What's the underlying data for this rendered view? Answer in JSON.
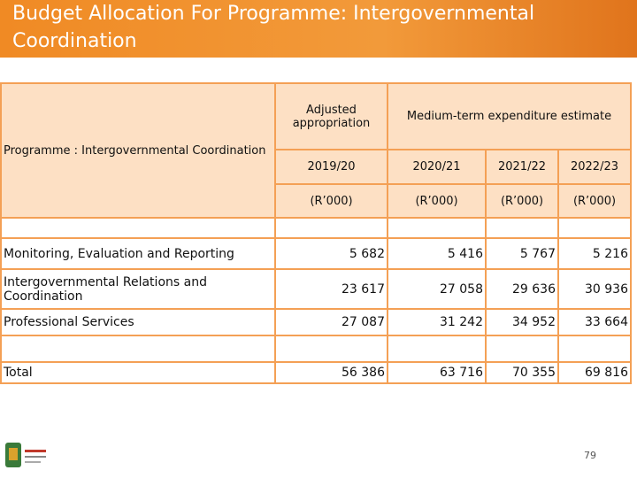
{
  "header": {
    "title": "Budget Allocation For Programme: Intergovernmental Coordination"
  },
  "table": {
    "row_header": "Programme : Intergovernmental Coordination",
    "group_headers": [
      "Adjusted appropriation",
      "Medium-term expenditure estimate"
    ],
    "years": [
      "2019/20",
      "2020/21",
      "2021/22",
      "2022/23"
    ],
    "units": [
      "(R’000)",
      "(R’000)",
      "(R’000)",
      "(R’000)"
    ],
    "rows": [
      [
        "Monitoring, Evaluation and Reporting",
        "5 682",
        "5 416",
        "5 767",
        "5 216"
      ],
      [
        "Intergovernmental Relations and Coordination",
        "23 617",
        "27 058",
        "29 636",
        "30 936"
      ],
      [
        "Professional Services",
        "27 087",
        "31 242",
        "34 952",
        "33 664"
      ]
    ],
    "total": [
      "Total",
      "56 386",
      "63 716",
      "70 355",
      "69 816"
    ]
  },
  "footer": {
    "page_number": "79"
  }
}
